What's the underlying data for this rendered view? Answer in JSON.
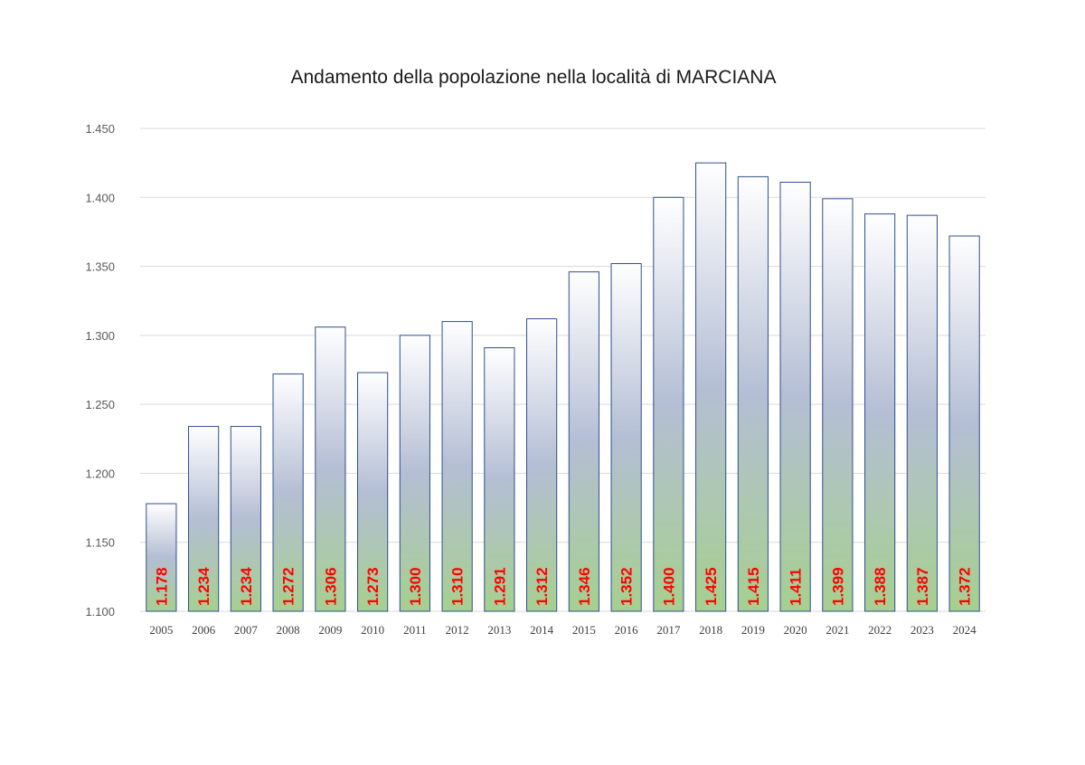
{
  "chart_data": {
    "type": "bar",
    "title": "Andamento della popolazione nella località di MARCIANA",
    "xlabel": "",
    "ylabel": "",
    "categories": [
      "2005",
      "2006",
      "2007",
      "2008",
      "2009",
      "2010",
      "2011",
      "2012",
      "2013",
      "2014",
      "2015",
      "2016",
      "2017",
      "2018",
      "2019",
      "2020",
      "2021",
      "2022",
      "2023",
      "2024"
    ],
    "values": [
      1178,
      1234,
      1234,
      1272,
      1306,
      1273,
      1300,
      1310,
      1291,
      1312,
      1346,
      1352,
      1400,
      1425,
      1415,
      1411,
      1399,
      1388,
      1387,
      1372
    ],
    "data_labels": [
      "1.178",
      "1.234",
      "1.234",
      "1.272",
      "1.306",
      "1.273",
      "1.300",
      "1.310",
      "1.291",
      "1.312",
      "1.346",
      "1.352",
      "1.400",
      "1.425",
      "1.415",
      "1.411",
      "1.399",
      "1.388",
      "1.387",
      "1.372"
    ],
    "ylim": [
      1100,
      1450
    ],
    "yticks": [
      1100,
      1150,
      1200,
      1250,
      1300,
      1350,
      1400,
      1450
    ],
    "ytick_labels": [
      "1.100",
      "1.150",
      "1.200",
      "1.250",
      "1.300",
      "1.350",
      "1.400",
      "1.450"
    ],
    "grid": true,
    "legend": "none",
    "colors": {
      "bar_top": "#ffffff",
      "bar_mid": "#b4bed4",
      "bar_bottom": "#a6d08f",
      "bar_border": "#2f4f8f",
      "data_label": "#ff0000",
      "grid": "#d9d9d9"
    }
  }
}
